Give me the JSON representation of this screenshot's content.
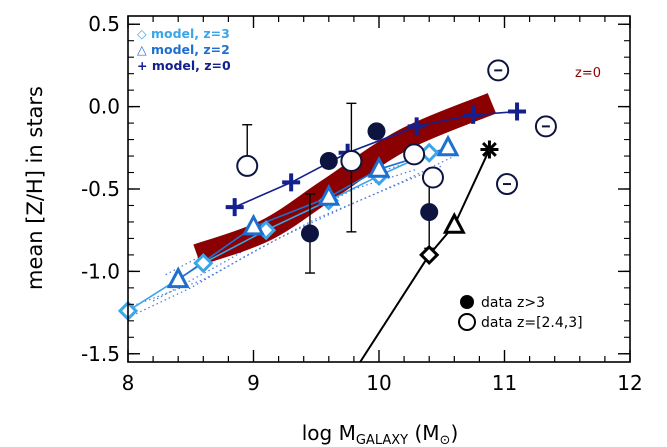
{
  "chart_data": {
    "type": "scatter",
    "xlabel": {
      "prefix": "log M",
      "sub": "GALAXY",
      "suffix": " (M",
      "sun": "⊙",
      "close": ")"
    },
    "ylabel": "mean [Z/H] in stars",
    "xlim": [
      8,
      12
    ],
    "ylim": [
      -1.55,
      0.55
    ],
    "x_ticks": [
      8,
      9,
      10,
      11,
      12
    ],
    "x_tick_labels": [
      "8",
      "9",
      "10",
      "11",
      "12"
    ],
    "y_ticks": [
      0.5,
      0.0,
      -0.5,
      -1.0,
      -1.5
    ],
    "y_tick_labels": [
      "0.5",
      "0.0",
      "-0.5",
      "-1.0",
      "-1.5"
    ],
    "legend_models": [
      {
        "label": "◇ model, z=3",
        "color": "#3aa6e8"
      },
      {
        "label": "△ model, z=2",
        "color": "#1f6fd0"
      },
      {
        "label": "+ model, z=0",
        "color": "#14208e"
      }
    ],
    "legend_data": [
      {
        "label": "data z>3",
        "marker": "filled-circle"
      },
      {
        "label": "data z=[2.4,3]",
        "marker": "open-circle"
      }
    ],
    "relation_label": "z=0",
    "colors": {
      "z0_relation": "#8b0000",
      "model_z3": "#3aa6e8",
      "model_z2": "#1f6fd0",
      "model_z0": "#14208e",
      "data_filled": "#0e1440",
      "data_open": "#0e1440",
      "black_line": "#000000"
    },
    "series": [
      {
        "name": "z=0",
        "kind": "relation",
        "x": [
          8.55,
          9.1,
          9.6,
          10.2,
          10.9
        ],
        "y": [
          -0.9,
          -0.75,
          -0.5,
          -0.2,
          0.02
        ]
      },
      {
        "name": "model, z=3",
        "kind": "model",
        "marker": "diamond",
        "x": [
          8.0,
          8.6,
          9.1,
          9.6,
          10.0,
          10.4
        ],
        "y": [
          -1.24,
          -0.95,
          -0.75,
          -0.57,
          -0.42,
          -0.28
        ]
      },
      {
        "name": "model, z=2",
        "kind": "model",
        "marker": "triangle",
        "x": [
          8.4,
          9.0,
          9.6,
          10.0,
          10.55
        ],
        "y": [
          -1.05,
          -0.73,
          -0.55,
          -0.38,
          -0.25
        ]
      },
      {
        "name": "model, z=0",
        "kind": "model",
        "marker": "plus",
        "x": [
          8.85,
          9.3,
          9.75,
          10.3,
          10.75,
          11.1
        ],
        "y": [
          -0.61,
          -0.46,
          -0.28,
          -0.12,
          -0.05,
          -0.03
        ]
      },
      {
        "name": "data z>3",
        "kind": "data",
        "marker": "filled-circle",
        "x": [
          9.45,
          9.6,
          9.98,
          10.4
        ],
        "y": [
          -0.77,
          -0.33,
          -0.15,
          -0.64
        ],
        "err_low": [
          0.24,
          0.0,
          0.0,
          0.22
        ],
        "err_high": [
          0.24,
          0.0,
          0.0,
          0.22
        ]
      },
      {
        "name": "data z=[2.4,3]",
        "kind": "data",
        "marker": "open-circle",
        "x": [
          8.95,
          9.78,
          10.28,
          10.43
        ],
        "y": [
          -0.36,
          -0.33,
          -0.29,
          -0.43
        ],
        "err_low": [
          0.0,
          0.43,
          0.0,
          0.0
        ],
        "err_high": [
          0.25,
          0.35,
          0.0,
          0.0
        ]
      },
      {
        "name": "upper-limit points",
        "kind": "limits",
        "marker": "circle-minus",
        "x": [
          10.95,
          11.33,
          11.02
        ],
        "y": [
          0.22,
          -0.12,
          -0.47
        ]
      },
      {
        "name": "black line",
        "kind": "black",
        "x": [
          9.85,
          10.4,
          10.6,
          10.88
        ],
        "y": [
          -1.55,
          -0.9,
          -0.72,
          -0.26
        ],
        "markers": [
          "none",
          "diamond",
          "triangle",
          "asterisk"
        ]
      }
    ],
    "dotted_model_tracks": [
      {
        "x": [
          8.0,
          8.5,
          9.0,
          9.5,
          10.0,
          10.5
        ],
        "y": [
          -1.28,
          -1.1,
          -0.88,
          -0.68,
          -0.52,
          -0.36
        ]
      },
      {
        "x": [
          8.0,
          8.6,
          9.2,
          9.7,
          10.2,
          10.6
        ],
        "y": [
          -1.22,
          -1.05,
          -0.8,
          -0.62,
          -0.45,
          -0.3
        ]
      },
      {
        "x": [
          8.3,
          8.9,
          9.4,
          9.9,
          10.4
        ],
        "y": [
          -1.02,
          -0.78,
          -0.58,
          -0.42,
          -0.3
        ]
      },
      {
        "x": [
          8.2,
          8.8,
          9.3,
          9.8,
          10.3
        ],
        "y": [
          -1.18,
          -0.93,
          -0.7,
          -0.5,
          -0.38
        ]
      }
    ]
  }
}
